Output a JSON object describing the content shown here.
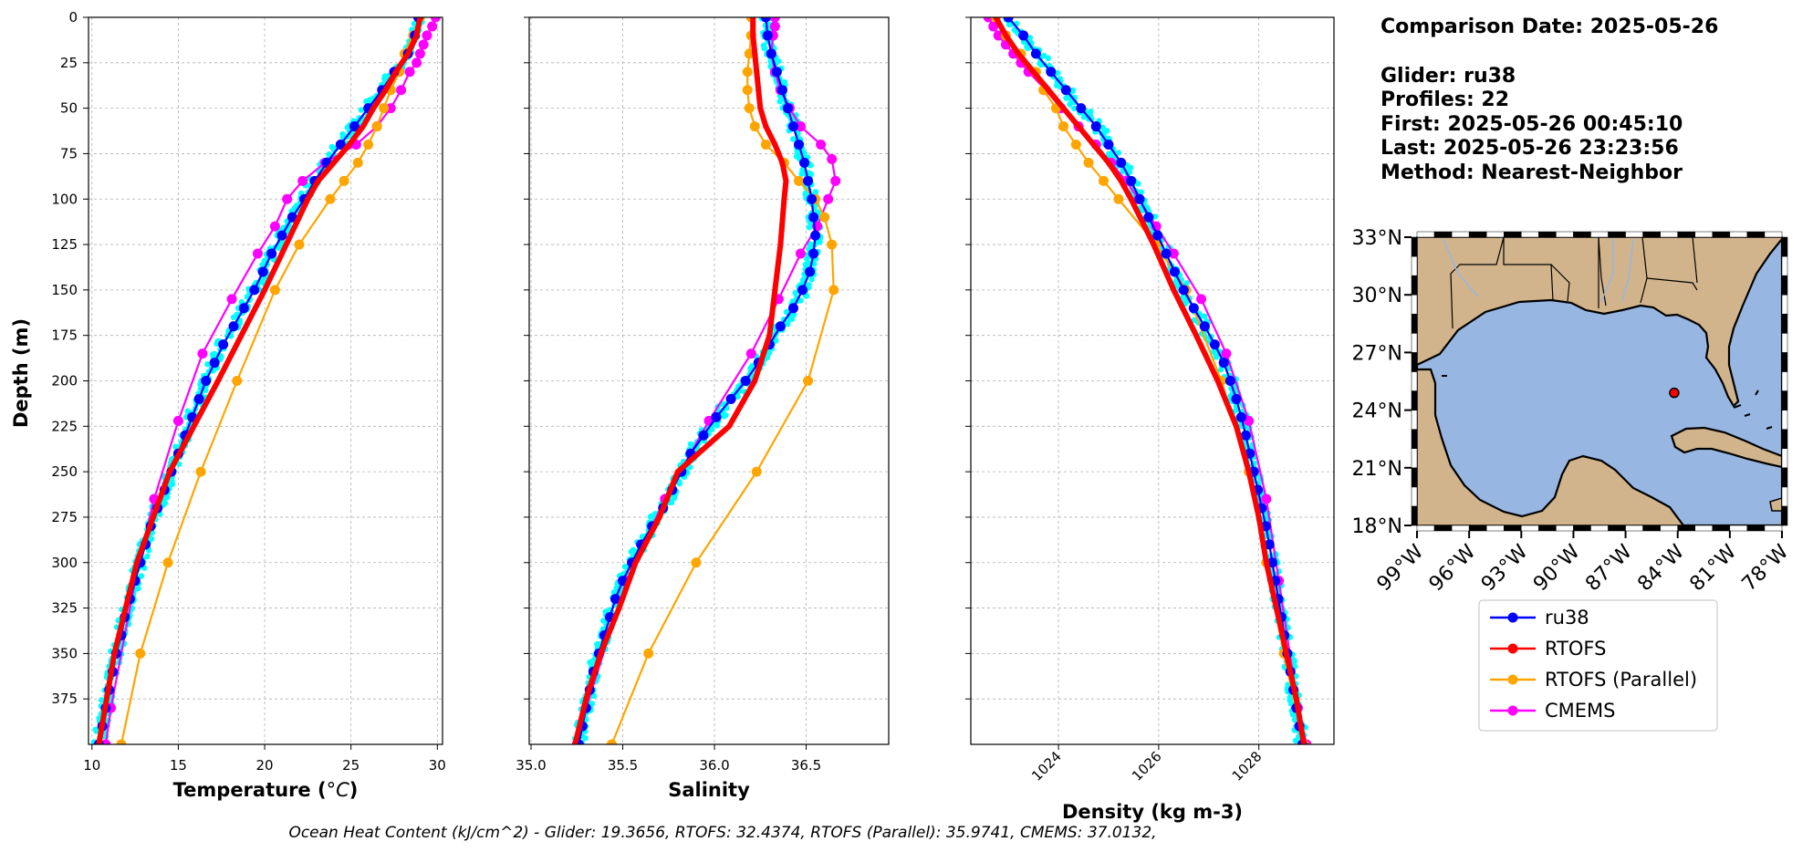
{
  "info": {
    "comparison_date": "Comparison Date: 2025-05-26",
    "glider": "Glider: ru38",
    "profiles": "Profiles: 22",
    "first": "First: 2025-05-26 00:45:10",
    "last": "Last: 2025-05-26 23:23:56",
    "method": "Method: Nearest-Neighbor"
  },
  "footer": "Ocean Heat Content (kJ/cm^2) - Glider: 19.3656,  RTOFS: 32.4374,  RTOFS (Parallel): 35.9741,  CMEMS: 37.0132,",
  "colors": {
    "ru38": "#0000ff",
    "RTOFS": "#ff0000",
    "RTOFS (Parallel)": "#ffa500",
    "CMEMS": "#ff00ff",
    "raw": "#00ffff",
    "land": "#d2b48c",
    "ocean": "#97b6e1"
  },
  "legend": [
    "ru38",
    "RTOFS",
    "RTOFS (Parallel)",
    "CMEMS"
  ],
  "map": {
    "lon_ticks": [
      "99°W",
      "96°W",
      "93°W",
      "90°W",
      "87°W",
      "84°W",
      "81°W",
      "78°W"
    ],
    "lat_ticks": [
      "33°N",
      "30°N",
      "27°N",
      "24°N",
      "21°N",
      "18°N"
    ],
    "extent": {
      "lon": [
        -99,
        -78
      ],
      "lat": [
        18,
        33
      ]
    },
    "glider_position": {
      "lon": -84.2,
      "lat": 24.9
    }
  },
  "chart_data": [
    {
      "type": "line",
      "xlabel": "Temperature (°C)",
      "ylabel": "Depth (m)",
      "xlim": [
        9.8,
        30.3
      ],
      "ylim": [
        400,
        0
      ],
      "x_ticks": [
        10,
        15,
        20,
        25,
        30
      ],
      "y_ticks": [
        0,
        25,
        50,
        75,
        100,
        125,
        150,
        175,
        200,
        225,
        250,
        275,
        300,
        325,
        350,
        375
      ],
      "grid": true,
      "series": [
        {
          "name": "ru38",
          "depth": [
            0,
            10,
            20,
            30,
            40,
            50,
            60,
            70,
            80,
            90,
            100,
            110,
            120,
            130,
            140,
            150,
            160,
            170,
            180,
            190,
            200,
            210,
            220,
            230,
            240,
            250,
            260,
            270,
            280,
            290,
            300,
            310,
            320,
            330,
            340,
            350,
            360,
            370,
            380,
            390,
            400
          ],
          "values": [
            28.9,
            28.7,
            28.3,
            27.5,
            26.8,
            26.0,
            25.2,
            24.4,
            23.6,
            22.9,
            22.3,
            21.6,
            21.0,
            20.4,
            19.9,
            19.4,
            18.8,
            18.2,
            17.6,
            17.1,
            16.6,
            16.2,
            15.8,
            15.4,
            15.0,
            14.6,
            14.2,
            13.8,
            13.4,
            13.1,
            12.8,
            12.5,
            12.2,
            11.9,
            11.7,
            11.4,
            11.2,
            11.0,
            10.8,
            10.6,
            10.4
          ]
        },
        {
          "name": "RTOFS",
          "depth": [
            0,
            10,
            20,
            30,
            40,
            50,
            60,
            70,
            80,
            90,
            100,
            150,
            200,
            250,
            300,
            350,
            400
          ],
          "values": [
            29.0,
            28.8,
            28.3,
            27.6,
            27.0,
            26.3,
            25.7,
            24.9,
            24.0,
            23.1,
            22.5,
            20.0,
            17.3,
            14.5,
            12.6,
            11.3,
            10.4
          ]
        },
        {
          "name": "RTOFS (Parallel)",
          "depth": [
            0,
            10,
            20,
            30,
            40,
            50,
            60,
            70,
            80,
            90,
            100,
            125,
            150,
            200,
            250,
            300,
            350,
            400
          ],
          "values": [
            29.0,
            28.6,
            28.1,
            27.8,
            27.3,
            26.9,
            26.5,
            26.0,
            25.4,
            24.6,
            23.8,
            22.0,
            20.6,
            18.4,
            16.3,
            14.4,
            12.8,
            11.7
          ]
        },
        {
          "name": "CMEMS",
          "depth": [
            0,
            5,
            10,
            15,
            20,
            25,
            30,
            40,
            50,
            60,
            70,
            80,
            90,
            100,
            115,
            130,
            155,
            185,
            222,
            265,
            310,
            380,
            400
          ],
          "values": [
            29.9,
            29.7,
            29.4,
            29.2,
            29.0,
            28.8,
            28.4,
            27.9,
            27.3,
            26.5,
            25.3,
            23.5,
            22.2,
            21.3,
            20.6,
            19.6,
            18.1,
            16.4,
            15.0,
            13.6,
            12.5,
            11.1,
            10.8
          ]
        }
      ]
    },
    {
      "type": "line",
      "xlabel": "Salinity",
      "ylabel": "",
      "xlim": [
        34.99,
        36.95
      ],
      "ylim": [
        400,
        0
      ],
      "x_ticks": [
        35.0,
        35.5,
        36.0,
        36.5
      ],
      "y_ticks": [
        0,
        25,
        50,
        75,
        100,
        125,
        150,
        175,
        200,
        225,
        250,
        275,
        300,
        325,
        350,
        375
      ],
      "grid": true,
      "series": [
        {
          "name": "ru38",
          "depth": [
            0,
            10,
            20,
            30,
            40,
            50,
            60,
            70,
            80,
            90,
            100,
            110,
            120,
            130,
            140,
            150,
            160,
            170,
            180,
            190,
            200,
            210,
            220,
            230,
            240,
            250,
            260,
            270,
            280,
            290,
            300,
            310,
            320,
            330,
            340,
            350,
            360,
            370,
            380,
            390,
            400
          ],
          "values": [
            36.28,
            36.29,
            36.31,
            36.34,
            36.37,
            36.4,
            36.43,
            36.46,
            36.49,
            36.51,
            36.53,
            36.54,
            36.55,
            36.54,
            36.52,
            36.48,
            36.43,
            36.36,
            36.3,
            36.24,
            36.17,
            36.09,
            36.01,
            35.94,
            35.87,
            35.82,
            35.77,
            35.72,
            35.66,
            35.6,
            35.55,
            35.5,
            35.46,
            35.43,
            35.4,
            35.37,
            35.34,
            35.32,
            35.3,
            35.28,
            35.26
          ]
        },
        {
          "name": "RTOFS",
          "depth": [
            0,
            10,
            20,
            30,
            40,
            50,
            60,
            70,
            80,
            90,
            100,
            125,
            150,
            175,
            200,
            225,
            250,
            275,
            300,
            325,
            350,
            375,
            400
          ],
          "values": [
            36.21,
            36.21,
            36.22,
            36.23,
            36.24,
            36.25,
            36.28,
            36.33,
            36.37,
            36.39,
            36.38,
            36.36,
            36.33,
            36.3,
            36.22,
            36.08,
            35.8,
            35.7,
            35.57,
            35.48,
            35.38,
            35.3,
            35.24
          ]
        },
        {
          "name": "RTOFS (Parallel)",
          "depth": [
            0,
            10,
            20,
            30,
            40,
            50,
            60,
            70,
            80,
            90,
            100,
            110,
            125,
            150,
            200,
            250,
            300,
            350,
            400
          ],
          "values": [
            36.2,
            36.2,
            36.19,
            36.18,
            36.18,
            36.19,
            36.22,
            36.28,
            36.38,
            36.46,
            36.55,
            36.6,
            36.64,
            36.65,
            36.51,
            36.23,
            35.9,
            35.64,
            35.44
          ]
        },
        {
          "name": "CMEMS",
          "depth": [
            0,
            5,
            10,
            20,
            30,
            40,
            50,
            60,
            70,
            78,
            90,
            100,
            115,
            130,
            155,
            185,
            222,
            265,
            310,
            380,
            400
          ],
          "values": [
            36.33,
            36.33,
            36.32,
            36.31,
            36.33,
            36.36,
            36.41,
            36.47,
            36.58,
            36.64,
            36.66,
            36.62,
            36.56,
            36.47,
            36.35,
            36.2,
            35.97,
            35.73,
            35.52,
            35.3,
            35.25
          ]
        }
      ]
    },
    {
      "type": "line",
      "xlabel": "Density (kg m-3)",
      "ylabel": "",
      "xlim": [
        1022.25,
        1029.5
      ],
      "ylim": [
        400,
        0
      ],
      "x_ticks": [
        1024,
        1026,
        1028
      ],
      "y_ticks": [
        0,
        25,
        50,
        75,
        100,
        125,
        150,
        175,
        200,
        225,
        250,
        275,
        300,
        325,
        350,
        375
      ],
      "grid": true,
      "series": [
        {
          "name": "ru38",
          "depth": [
            0,
            10,
            20,
            30,
            40,
            50,
            60,
            70,
            80,
            90,
            100,
            110,
            120,
            130,
            140,
            150,
            160,
            170,
            180,
            190,
            200,
            210,
            220,
            230,
            240,
            250,
            260,
            270,
            280,
            290,
            300,
            310,
            320,
            330,
            340,
            350,
            360,
            370,
            380,
            390,
            400
          ],
          "values": [
            1023.0,
            1023.3,
            1023.55,
            1023.85,
            1024.15,
            1024.45,
            1024.75,
            1025.0,
            1025.25,
            1025.45,
            1025.62,
            1025.8,
            1025.98,
            1026.15,
            1026.32,
            1026.5,
            1026.7,
            1026.92,
            1027.12,
            1027.3,
            1027.43,
            1027.55,
            1027.65,
            1027.74,
            1027.82,
            1027.9,
            1027.98,
            1028.06,
            1028.14,
            1028.21,
            1028.27,
            1028.33,
            1028.39,
            1028.45,
            1028.51,
            1028.57,
            1028.63,
            1028.69,
            1028.75,
            1028.81,
            1028.87
          ]
        },
        {
          "name": "RTOFS",
          "depth": [
            0,
            10,
            20,
            30,
            40,
            50,
            60,
            70,
            80,
            90,
            100,
            125,
            150,
            175,
            200,
            225,
            250,
            275,
            300,
            325,
            350,
            375,
            400
          ],
          "values": [
            1022.75,
            1022.95,
            1023.2,
            1023.5,
            1023.8,
            1024.1,
            1024.4,
            1024.7,
            1025.0,
            1025.25,
            1025.45,
            1025.9,
            1026.3,
            1026.75,
            1027.18,
            1027.55,
            1027.8,
            1028.0,
            1028.15,
            1028.35,
            1028.55,
            1028.75,
            1028.9
          ]
        },
        {
          "name": "RTOFS (Parallel)",
          "depth": [
            0,
            10,
            20,
            30,
            40,
            50,
            60,
            70,
            80,
            90,
            100,
            125,
            150,
            200,
            250,
            300,
            350,
            400
          ],
          "values": [
            1022.75,
            1022.95,
            1023.25,
            1023.55,
            1023.7,
            1023.95,
            1024.1,
            1024.35,
            1024.6,
            1024.9,
            1025.2,
            1025.95,
            1026.55,
            1027.25,
            1027.8,
            1028.15,
            1028.5,
            1028.9
          ]
        },
        {
          "name": "CMEMS",
          "depth": [
            0,
            5,
            10,
            15,
            20,
            25,
            30,
            40,
            50,
            60,
            70,
            80,
            90,
            100,
            115,
            130,
            155,
            185,
            222,
            265,
            310,
            380,
            400
          ],
          "values": [
            1022.6,
            1022.7,
            1022.8,
            1022.95,
            1023.1,
            1023.25,
            1023.4,
            1023.75,
            1024.05,
            1024.4,
            1024.75,
            1025.05,
            1025.35,
            1025.6,
            1025.95,
            1026.3,
            1026.85,
            1027.35,
            1027.8,
            1028.15,
            1028.4,
            1028.78,
            1028.95
          ]
        }
      ]
    }
  ]
}
